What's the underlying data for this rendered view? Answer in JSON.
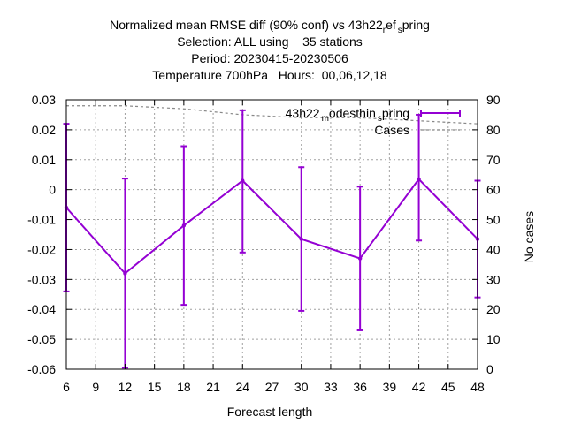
{
  "chart_data": {
    "type": "line",
    "title_lines": [
      "Normalized mean RMSE diff (90% conf) vs 43h22",
      "Selection: ALL using    35 stations",
      "Period: 20230415-20230506",
      "Temperature 700hPa   Hours:  00,06,12,18"
    ],
    "title_ref_parts": [
      "r",
      "ef",
      "s",
      "pring"
    ],
    "xlabel": "Forecast length",
    "ylabel": "",
    "y2label": "No cases",
    "x_ticks": [
      "6",
      "9",
      "12",
      "15",
      "18",
      "21",
      "24",
      "27",
      "30",
      "33",
      "36",
      "39",
      "42",
      "45",
      "48"
    ],
    "y_ticks": [
      "0.03",
      "0.02",
      "0.01",
      "0",
      "-0.01",
      "-0.02",
      "-0.03",
      "-0.04",
      "-0.05",
      "-0.06"
    ],
    "y2_ticks": [
      "90",
      "80",
      "70",
      "60",
      "50",
      "40",
      "30",
      "20",
      "10",
      "0"
    ],
    "xlim": [
      6,
      48
    ],
    "ylim": [
      -0.06,
      0.03
    ],
    "y2lim": [
      0,
      90
    ],
    "grid": true,
    "legend_position": "top-right",
    "series": [
      {
        "name_parts": [
          "43h22",
          "m",
          "odesthin",
          "s",
          "pring"
        ],
        "color": "#9400d3",
        "x": [
          6,
          12,
          18,
          24,
          30,
          36,
          42,
          48
        ],
        "y": [
          -0.006,
          -0.028,
          -0.012,
          0.003,
          -0.0165,
          -0.023,
          0.0035,
          -0.0165
        ],
        "err_low": [
          -0.034,
          -0.0595,
          -0.0385,
          -0.021,
          -0.0405,
          -0.047,
          -0.017,
          -0.036
        ],
        "err_high": [
          0.022,
          0.0037,
          0.0145,
          0.0265,
          0.0075,
          0.001,
          0.025,
          0.003
        ]
      },
      {
        "name": "Cases",
        "color": "#888888",
        "axis": "right",
        "x": [
          6,
          12,
          18,
          24,
          30,
          36,
          42,
          48
        ],
        "y": [
          88,
          88,
          87,
          85,
          84,
          84,
          83,
          82
        ]
      }
    ]
  }
}
